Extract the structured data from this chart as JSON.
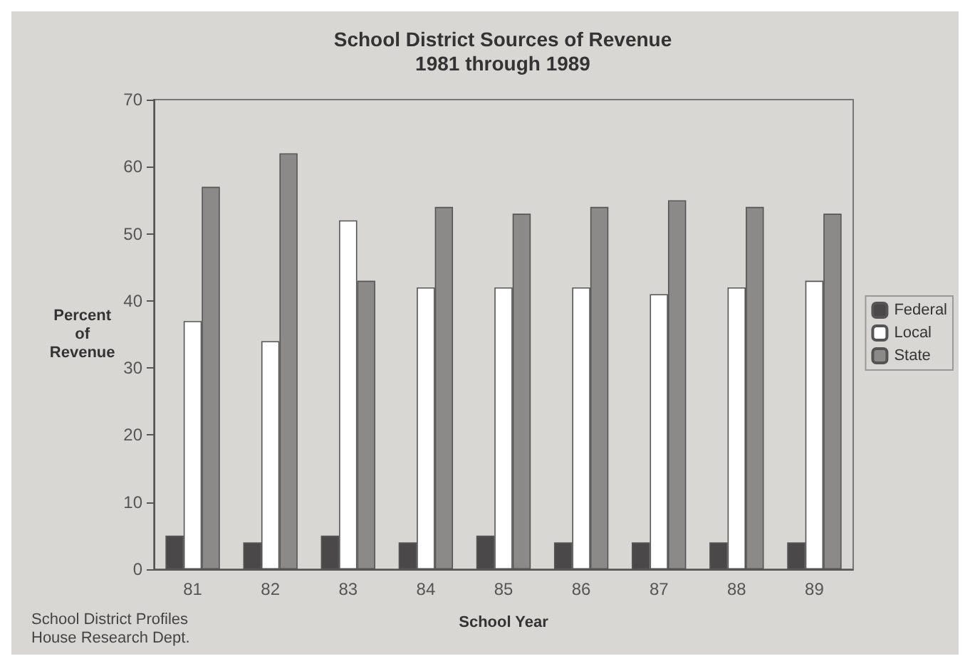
{
  "chart_data": {
    "type": "bar",
    "title": "School District Sources of Revenue\n1981 through 1989",
    "xlabel": "School Year",
    "ylabel": "Percent\nof\nRevenue",
    "categories": [
      "81",
      "82",
      "83",
      "84",
      "85",
      "86",
      "87",
      "88",
      "89"
    ],
    "series": [
      {
        "name": "Federal",
        "color": "#4a4848",
        "values": [
          5,
          4,
          5,
          4,
          5,
          4,
          4,
          4,
          4
        ]
      },
      {
        "name": "Local",
        "color": "#ffffff",
        "values": [
          37,
          34,
          52,
          42,
          42,
          42,
          41,
          42,
          43
        ]
      },
      {
        "name": "State",
        "color": "#8c8a88",
        "values": [
          57,
          62,
          43,
          54,
          53,
          54,
          55,
          54,
          53
        ]
      }
    ],
    "ylim": [
      0,
      70
    ],
    "yticks": [
      0,
      10,
      20,
      30,
      40,
      50,
      60,
      70
    ],
    "grid": false,
    "legend": "right",
    "annotations": [
      "School District Profiles",
      "House Research Dept."
    ]
  }
}
